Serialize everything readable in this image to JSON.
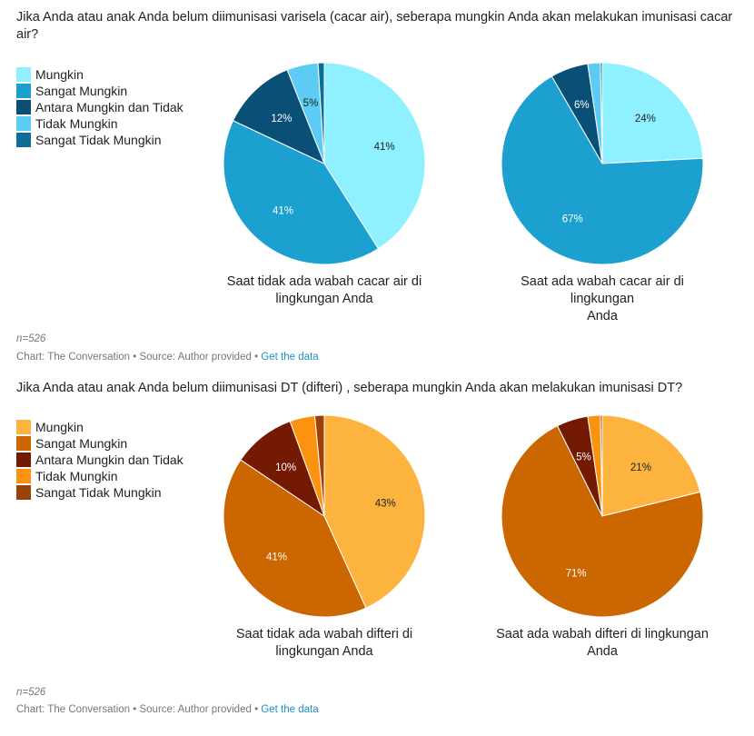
{
  "sections": [
    {
      "title": "Jika Anda atau anak Anda belum diimunisasi varisela (cacar air), seberapa mungkin Anda akan melakukan imunisasi cacar air?",
      "legend": [
        {
          "label": "Mungkin",
          "color": "#8ff1ff"
        },
        {
          "label": "Sangat Mungkin",
          "color": "#1ba0cf"
        },
        {
          "label": "Antara Mungkin dan Tidak",
          "color": "#0a4f76"
        },
        {
          "label": "Tidak Mungkin",
          "color": "#5dccf5"
        },
        {
          "label": "Sangat Tidak Mungkin",
          "color": "#0a7099"
        }
      ],
      "pies": [
        {
          "caption_line1": "Saat tidak ada wabah cacar air di",
          "caption_line2": "lingkungan Anda"
        },
        {
          "caption_line1": "Saat ada wabah cacar air di lingkungan",
          "caption_line2": "Anda"
        }
      ],
      "note": "n=526",
      "source_prefix": "Chart: The Conversation • Source: Author provided • ",
      "source_link": "Get the data"
    },
    {
      "title": "Jika Anda atau anak Anda belum diimunisasi DT (difteri) , seberapa mungkin Anda akan melakukan imunisasi DT?",
      "legend": [
        {
          "label": "Mungkin",
          "color": "#fdb43e"
        },
        {
          "label": "Sangat Mungkin",
          "color": "#cc6600"
        },
        {
          "label": "Antara Mungkin dan Tidak",
          "color": "#751a02"
        },
        {
          "label": "Tidak Mungkin",
          "color": "#fc9310"
        },
        {
          "label": "Sangat Tidak Mungkin",
          "color": "#9c4208"
        }
      ],
      "pies": [
        {
          "caption_line1": "Saat tidak ada wabah difteri di",
          "caption_line2": "lingkungan Anda"
        },
        {
          "caption_line1": "Saat ada wabah difteri di lingkungan",
          "caption_line2": "Anda"
        }
      ],
      "note": "n=526",
      "source_prefix": "Chart: The Conversation • Source: Author provided • ",
      "source_link": "Get the data"
    }
  ],
  "chart_data": [
    {
      "type": "pie",
      "title": "Saat tidak ada wabah cacar air di lingkungan Anda",
      "categories": [
        "Mungkin",
        "Sangat Mungkin",
        "Antara Mungkin dan Tidak",
        "Tidak Mungkin",
        "Sangat Tidak Mungkin"
      ],
      "values": [
        41,
        41,
        12,
        5,
        1
      ],
      "labels": [
        "41%",
        "41%",
        "12%",
        "5%",
        ""
      ],
      "label_colors": [
        "#222222",
        "#ffffff",
        "#ffffff",
        "#222222",
        "#ffffff"
      ],
      "colors": [
        "#8ff1ff",
        "#1ba0cf",
        "#0a4f76",
        "#5dccf5",
        "#0a7099"
      ],
      "legend": "left"
    },
    {
      "type": "pie",
      "title": "Saat ada wabah cacar air di lingkungan Anda",
      "categories": [
        "Mungkin",
        "Sangat Mungkin",
        "Antara Mungkin dan Tidak",
        "Tidak Mungkin",
        "Sangat Tidak Mungkin"
      ],
      "values": [
        24,
        67,
        6,
        2,
        0.3
      ],
      "labels": [
        "24%",
        "67%",
        "6%",
        "",
        ""
      ],
      "label_colors": [
        "#222222",
        "#ffffff",
        "#ffffff",
        "#222222",
        "#ffffff"
      ],
      "colors": [
        "#8ff1ff",
        "#1ba0cf",
        "#0a4f76",
        "#5dccf5",
        "#0a7099"
      ],
      "legend": "left"
    },
    {
      "type": "pie",
      "title": "Saat tidak ada wabah difteri di lingkungan Anda",
      "categories": [
        "Mungkin",
        "Sangat Mungkin",
        "Antara Mungkin dan Tidak",
        "Tidak Mungkin",
        "Sangat Tidak Mungkin"
      ],
      "values": [
        43,
        41,
        10,
        4,
        1.5
      ],
      "labels": [
        "43%",
        "41%",
        "10%",
        "",
        ""
      ],
      "label_colors": [
        "#222222",
        "#ffffff",
        "#ffffff",
        "#222222",
        "#ffffff"
      ],
      "colors": [
        "#fdb43e",
        "#cc6600",
        "#751a02",
        "#fc9310",
        "#9c4208"
      ],
      "legend": "left"
    },
    {
      "type": "pie",
      "title": "Saat ada wabah difteri di lingkungan Anda",
      "categories": [
        "Mungkin",
        "Sangat Mungkin",
        "Antara Mungkin dan Tidak",
        "Tidak Mungkin",
        "Sangat Tidak Mungkin"
      ],
      "values": [
        21,
        71,
        5,
        2,
        0.3
      ],
      "labels": [
        "21%",
        "71%",
        "5%",
        "",
        ""
      ],
      "label_colors": [
        "#222222",
        "#ffffff",
        "#ffffff",
        "#222222",
        "#ffffff"
      ],
      "colors": [
        "#fdb43e",
        "#cc6600",
        "#751a02",
        "#fc9310",
        "#9c4208"
      ],
      "legend": "left"
    }
  ]
}
